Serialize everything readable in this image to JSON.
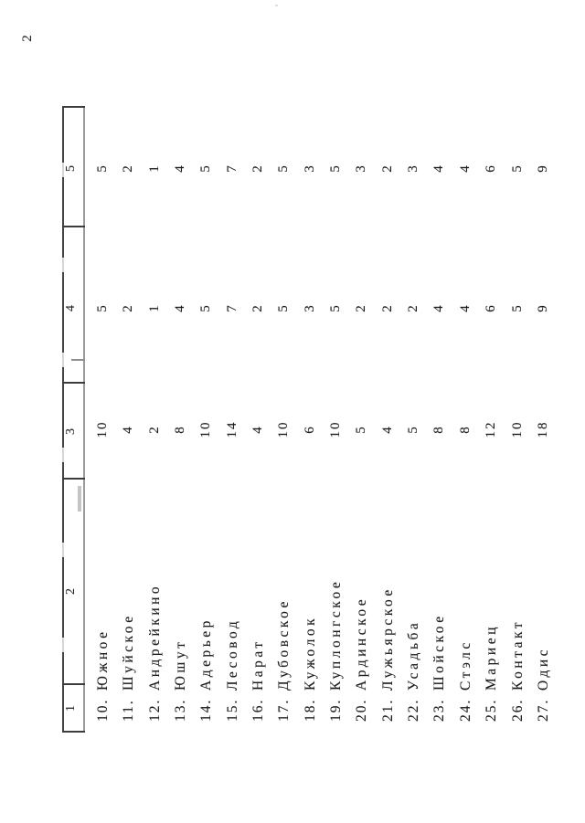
{
  "page": {
    "number": "2"
  },
  "table": {
    "headers": [
      "1",
      "2",
      "3",
      "4",
      "5"
    ],
    "rows": [
      {
        "num": "10.",
        "name": "Южное",
        "c2": "",
        "c3": "10",
        "c4": "5",
        "c5": "5"
      },
      {
        "num": "11.",
        "name": "Шуйское",
        "c2": "",
        "c3": "4",
        "c4": "2",
        "c5": "2"
      },
      {
        "num": "12.",
        "name": "Андрейкино",
        "c2": "",
        "c3": "2",
        "c4": "1",
        "c5": "1"
      },
      {
        "num": "13.",
        "name": "Юшут",
        "c2": "",
        "c3": "8",
        "c4": "4",
        "c5": "4"
      },
      {
        "num": "14.",
        "name": "Адерьер",
        "c2": "",
        "c3": "10",
        "c4": "5",
        "c5": "5"
      },
      {
        "num": "15.",
        "name": "Лесовод",
        "c2": "",
        "c3": "14",
        "c4": "7",
        "c5": "7"
      },
      {
        "num": "16.",
        "name": "Нарат",
        "c2": "",
        "c3": "4",
        "c4": "2",
        "c5": "2"
      },
      {
        "num": "17.",
        "name": "Дубовское",
        "c2": "",
        "c3": "10",
        "c4": "5",
        "c5": "5"
      },
      {
        "num": "18.",
        "name": "Кужолок",
        "c2": "",
        "c3": "6",
        "c4": "3",
        "c5": "3"
      },
      {
        "num": "19.",
        "name": "Куплонгское",
        "c2": "",
        "c3": "10",
        "c4": "5",
        "c5": "5"
      },
      {
        "num": "20.",
        "name": "Ардинское",
        "c2": "",
        "c3": "5",
        "c4": "2",
        "c5": "3"
      },
      {
        "num": "21.",
        "name": "Лужьярское",
        "c2": "",
        "c3": "4",
        "c4": "2",
        "c5": "2"
      },
      {
        "num": "22.",
        "name": "Усадьба",
        "c2": "",
        "c3": "5",
        "c4": "2",
        "c5": "3"
      },
      {
        "num": "23.",
        "name": "Шойское",
        "c2": "",
        "c3": "8",
        "c4": "4",
        "c5": "4"
      },
      {
        "num": "24.",
        "name": "Стэлс",
        "c2": "",
        "c3": "8",
        "c4": "4",
        "c5": "4"
      },
      {
        "num": "25.",
        "name": "Мариец",
        "c2": "",
        "c3": "12",
        "c4": "6",
        "c5": "6"
      },
      {
        "num": "26.",
        "name": "Контакт",
        "c2": "",
        "c3": "10",
        "c4": "5",
        "c5": "5"
      },
      {
        "num": "27.",
        "name": "Одис",
        "c2": "",
        "c3": "18",
        "c4": "9",
        "c5": "9"
      }
    ]
  }
}
